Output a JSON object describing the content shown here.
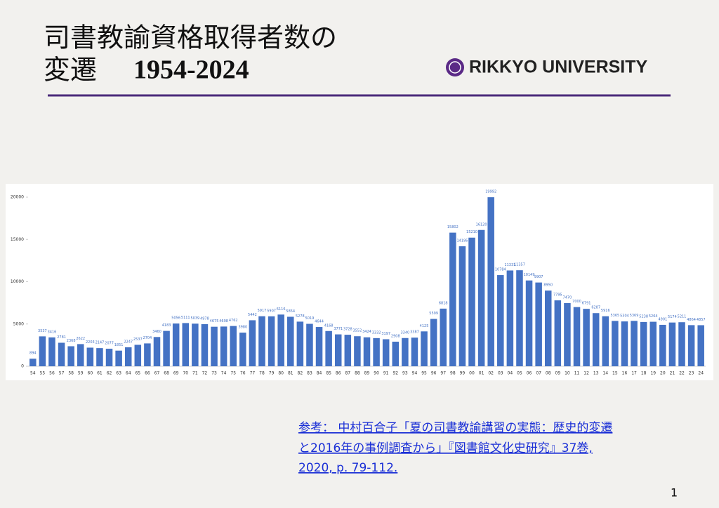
{
  "header": {
    "title_line1": "司書教諭資格取得者数の",
    "title_line2": "変遷",
    "title_years": "1954-2024",
    "logo": "RIKKYO UNIVERSITY"
  },
  "chart_data": {
    "type": "bar",
    "categories": [
      "54",
      "55",
      "56",
      "57",
      "58",
      "59",
      "60",
      "61",
      "62",
      "63",
      "64",
      "65",
      "66",
      "67",
      "68",
      "69",
      "70",
      "71",
      "72",
      "73",
      "74",
      "75",
      "76",
      "77",
      "78",
      "79",
      "80",
      "81",
      "82",
      "83",
      "84",
      "85",
      "86",
      "87",
      "88",
      "89",
      "90",
      "91",
      "92",
      "93",
      "94",
      "95",
      "96",
      "97",
      "98",
      "99",
      "00",
      "01",
      "02",
      "03",
      "04",
      "05",
      "06",
      "07",
      "08",
      "09",
      "10",
      "11",
      "12",
      "13",
      "14",
      "15",
      "16",
      "17",
      "18",
      "19",
      "20",
      "21",
      "22",
      "23",
      "24"
    ],
    "values": [
      894,
      3537,
      3416,
      2781,
      2368,
      2622,
      2203,
      2147,
      2077,
      1851,
      2247,
      2537,
      2704,
      3460,
      4183,
      5056,
      5111,
      5039,
      4978,
      4675,
      4698,
      4762,
      3980,
      5442,
      5917,
      5907,
      6116,
      5854,
      5278,
      5019,
      4644,
      4168,
      3771,
      3728,
      3552,
      3424,
      3332,
      3197,
      2908,
      3340,
      3387,
      4125,
      5599,
      6818,
      15802,
      14195,
      15210,
      16120,
      19992,
      10784,
      11331,
      11357,
      10149,
      9907,
      8950,
      7795,
      7470,
      7000,
      6791,
      6287,
      5916,
      5365,
      5304,
      5369,
      5238,
      5264,
      4901,
      5174,
      5211,
      4864,
      4857
    ],
    "color": "#4472c4",
    "ylim": [
      0,
      20000
    ],
    "yticks": [
      0,
      5000,
      10000,
      15000,
      20000
    ],
    "grid": false
  },
  "reference": {
    "lines": [
      "参考： 中村百合子「夏の司書教諭講習の実態：歴史的変遷",
      "と2016年の事例調査から」『図書館文化史研究』37巻,",
      "2020, p. 79-112."
    ]
  },
  "page_number": "1"
}
